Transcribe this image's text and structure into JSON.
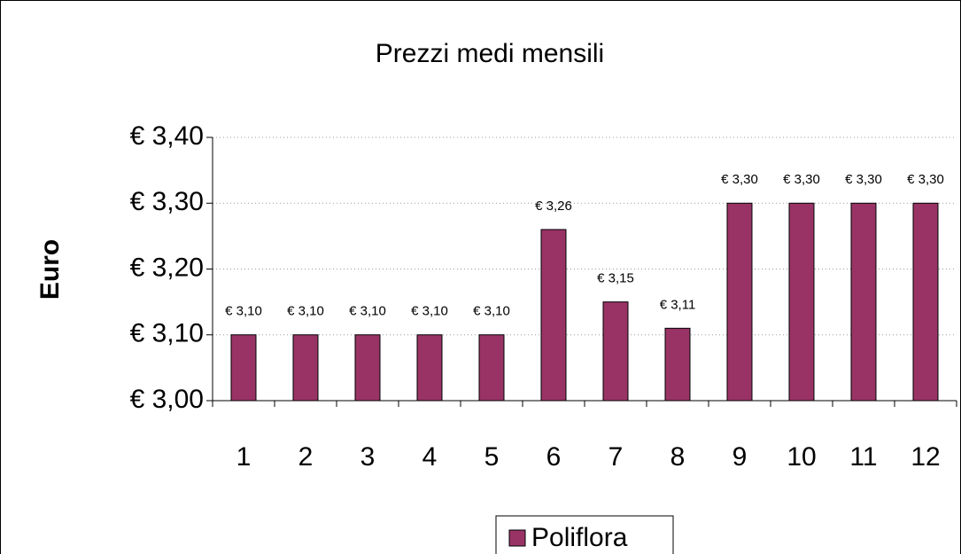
{
  "chart_data": {
    "type": "bar",
    "title": "Prezzi medi mensili",
    "y_label": "Euro",
    "categories": [
      "1",
      "2",
      "3",
      "4",
      "5",
      "6",
      "7",
      "8",
      "9",
      "10",
      "11",
      "12"
    ],
    "series": [
      {
        "name": "Poliflora",
        "color": "#993366",
        "values": [
          3.1,
          3.1,
          3.1,
          3.1,
          3.1,
          3.26,
          3.15,
          3.11,
          3.3,
          3.3,
          3.3,
          3.3
        ],
        "value_labels": [
          "€ 3,10",
          "€ 3,10",
          "€ 3,10",
          "€ 3,10",
          "€ 3,10",
          "€ 3,26",
          "€ 3,15",
          "€ 3,11",
          "€ 3,30",
          "€ 3,30",
          "€ 3,30",
          "€ 3,30"
        ]
      }
    ],
    "ylim": [
      3.0,
      3.4
    ],
    "yticks": [
      {
        "value": 3.0,
        "label": "€ 3,00"
      },
      {
        "value": 3.1,
        "label": "€ 3,10"
      },
      {
        "value": 3.2,
        "label": "€ 3,20"
      },
      {
        "value": 3.3,
        "label": "€ 3,30"
      },
      {
        "value": 3.4,
        "label": "€ 3,40"
      }
    ],
    "grid": true,
    "legend": "bottom"
  }
}
